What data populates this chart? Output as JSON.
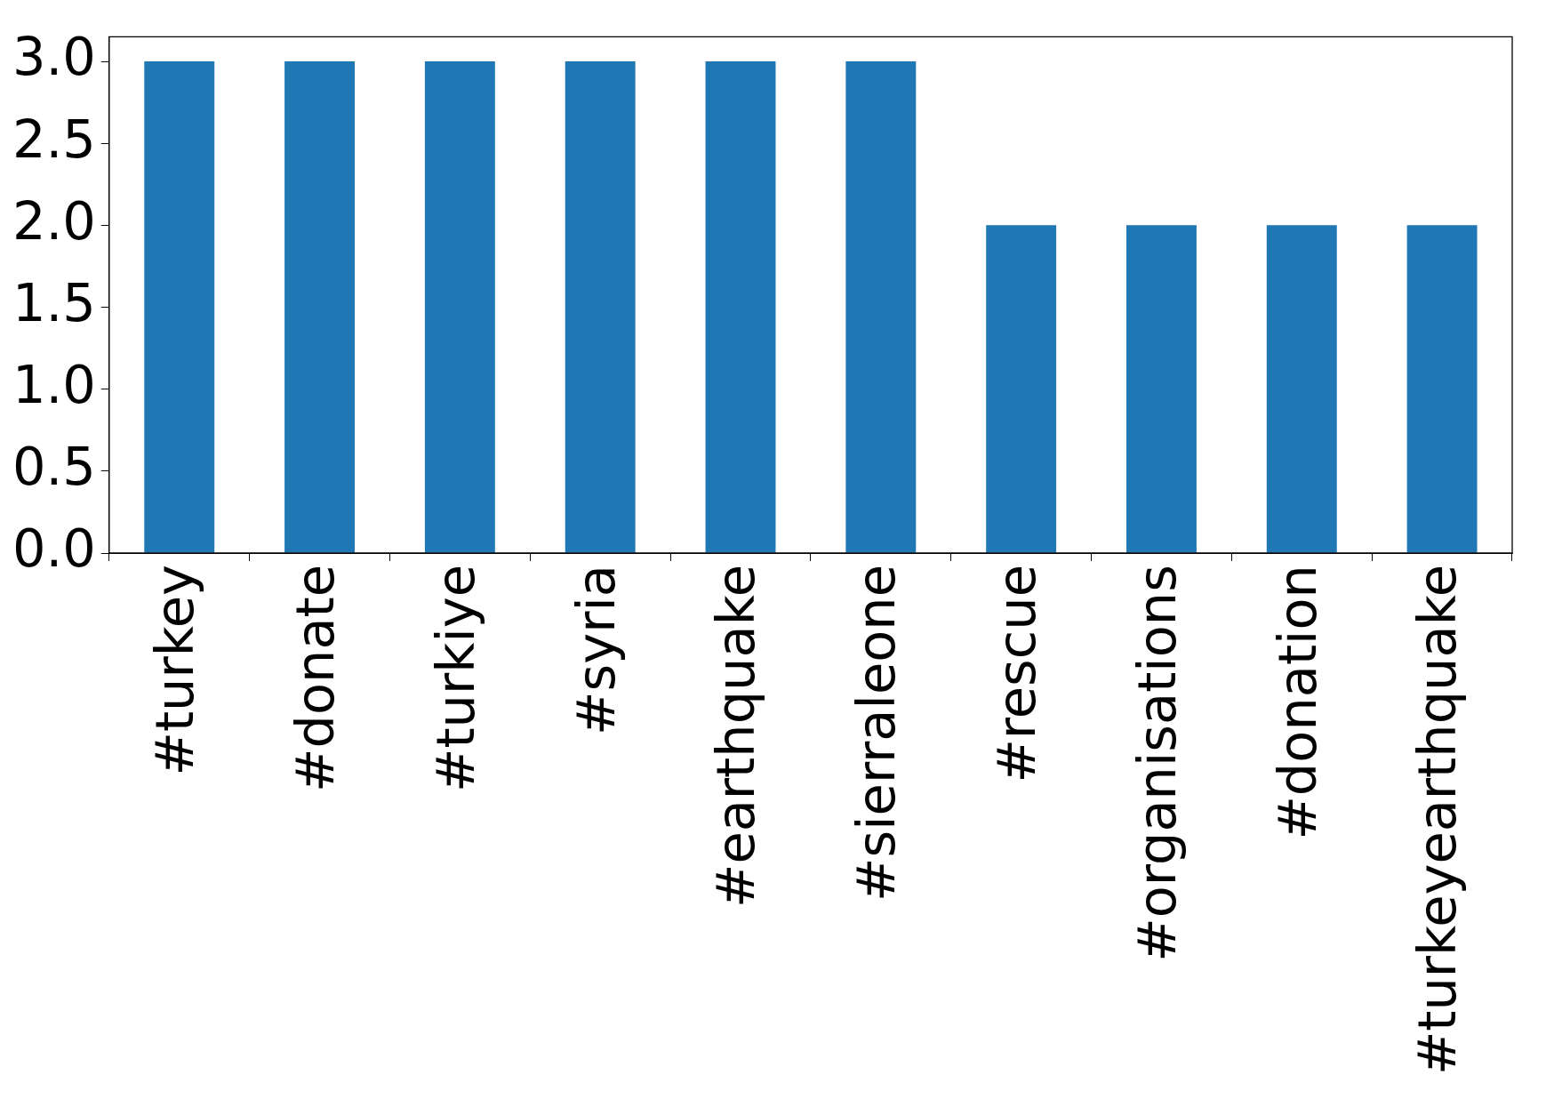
{
  "chart_data": {
    "type": "bar",
    "categories": [
      "#turkey",
      "#donate",
      "#turkiye",
      "#syria",
      "#earthquake",
      "#sierraleone",
      "#rescue",
      "#organisations",
      "#donation",
      "#turkeyearthquake"
    ],
    "values": [
      3,
      3,
      3,
      3,
      3,
      3,
      2,
      2,
      2,
      2
    ],
    "color": "#1f77b4",
    "ylim": [
      0,
      3.15
    ],
    "yticks": [
      {
        "value": 0,
        "label": "0.0"
      },
      0.5,
      {
        "value": 1,
        "label": "1.0"
      },
      1.5,
      {
        "value": 2,
        "label": "2.0"
      },
      2.5,
      {
        "value": 3,
        "label": "3.0"
      }
    ],
    "grid": false,
    "legend": false
  }
}
